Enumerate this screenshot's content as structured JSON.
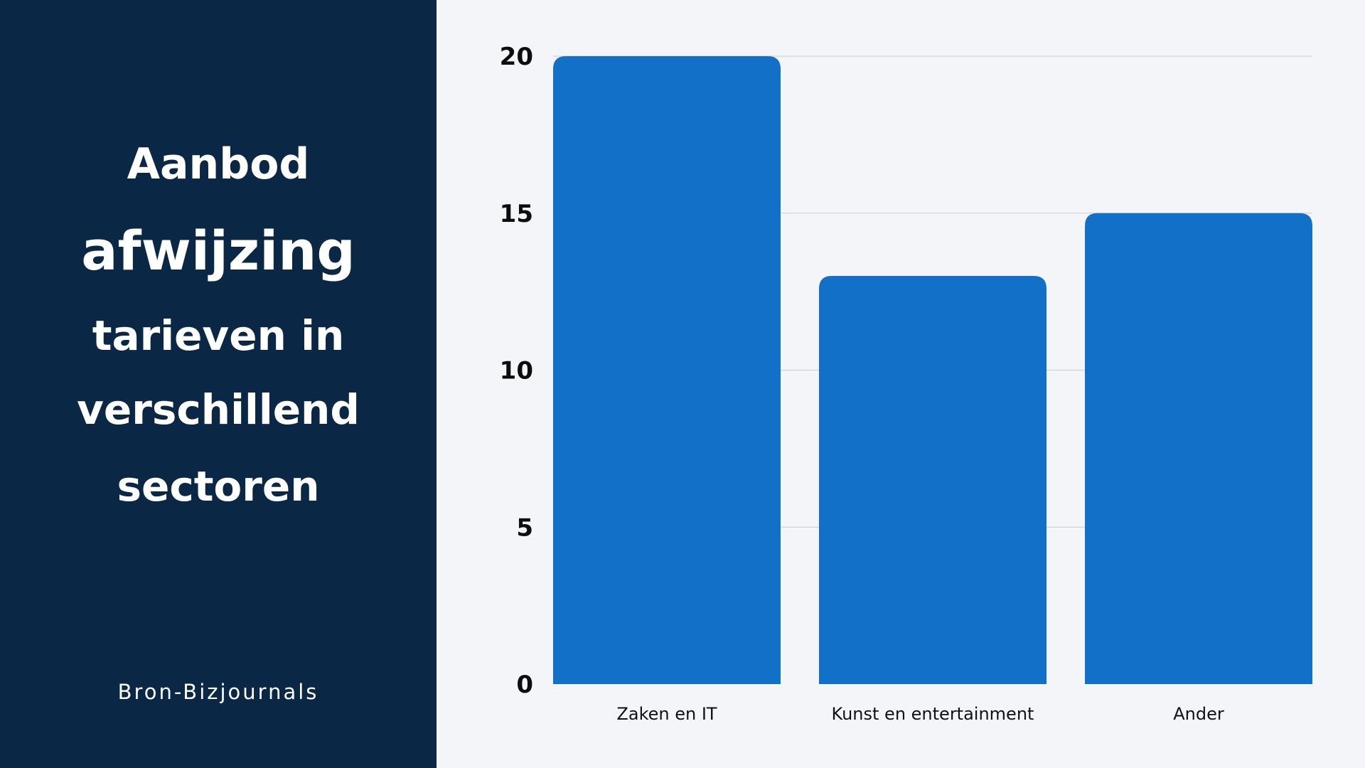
{
  "title_lines": [
    "Aanbod",
    "afwijzing",
    "tarieven in",
    "verschillend",
    "sectoren"
  ],
  "source": "Bron-Bizjournals",
  "colors": {
    "panel": "#0a2746",
    "bar": "#1270c9",
    "background": "#f3f5f9",
    "grid": "#c9ccd2"
  },
  "chart_data": {
    "type": "bar",
    "title": "Aanbod afwijzing tarieven in verschillend sectoren",
    "categories": [
      "Zaken en IT",
      "Kunst en entertainment",
      "Ander"
    ],
    "values": [
      20,
      13,
      15
    ],
    "ylim": [
      0,
      20
    ],
    "yticks": [
      0,
      5,
      10,
      15,
      20
    ],
    "ytick_labels": [
      "0",
      "5",
      "10",
      "15",
      "20"
    ],
    "xlabel": "",
    "ylabel": "",
    "grid": true
  }
}
